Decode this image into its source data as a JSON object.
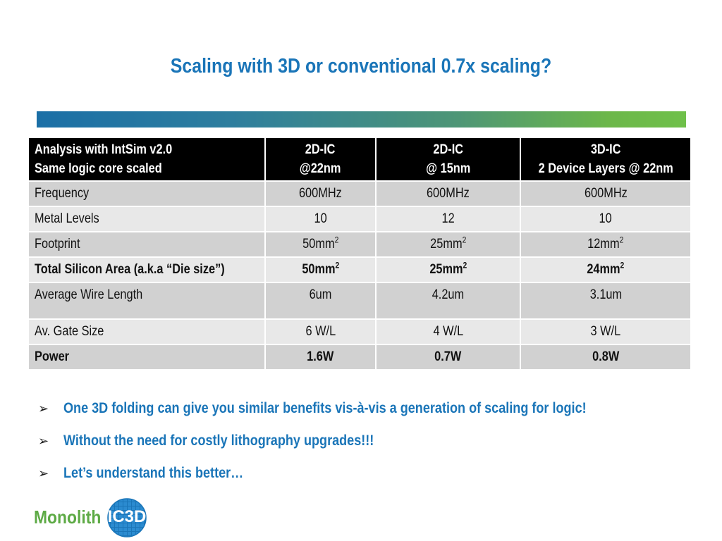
{
  "slide": {
    "title": "Scaling with 3D or conventional 0.7x scaling?"
  },
  "table": {
    "header": {
      "col0_line1": "Analysis with IntSim v2.0",
      "col0_line2": "Same logic core scaled",
      "col1_line1": "2D-IC",
      "col1_line2": "@22nm",
      "col2_line1": "2D-IC",
      "col2_line2": "@ 15nm",
      "col3_line1": "3D-IC",
      "col3_line2": "2 Device Layers @ 22nm"
    },
    "rows": [
      {
        "label": "Frequency",
        "v1": "600MHz",
        "v2": "600MHz",
        "v3": "600MHz"
      },
      {
        "label": "Metal Levels",
        "v1": "10",
        "v2": "12",
        "v3": "10"
      },
      {
        "label": "Footprint",
        "v1": "50mm",
        "v2": "25mm",
        "v3": "12mm",
        "sup": "2"
      },
      {
        "label": "Total Silicon Area (a.k.a “Die size”)",
        "v1": "50mm",
        "v2": "25mm",
        "v3": "24mm",
        "sup": "2"
      },
      {
        "label": "Average Wire Length",
        "v1": "6um",
        "v2": "4.2um",
        "v3": "3.1um"
      },
      {
        "label": "Av. Gate Size",
        "v1": "6 W/L",
        "v2": "4 W/L",
        "v3": "3 W/L"
      },
      {
        "label": "Power",
        "v1": "1.6W",
        "v2": "0.7W",
        "v3": "0.8W"
      }
    ]
  },
  "bullets": {
    "marker": "➢",
    "items": [
      "One 3D folding can give you similar benefits vis-à-vis a generation of scaling for logic!",
      "Without the need for costly lithography upgrades!!!",
      "Let’s understand this better…"
    ]
  },
  "logo": {
    "word": "Monolith",
    "badge": "IC3D",
    "colors": {
      "word": "#5DAA45",
      "badge": "#1A75B8"
    }
  },
  "colors": {
    "title": "#1A75B8",
    "header_bg": "#000000",
    "row_dark": "#D1D1D1",
    "row_light": "#E8E8E8",
    "bar_start": "#1B6FA6",
    "bar_end": "#6FC04A"
  }
}
